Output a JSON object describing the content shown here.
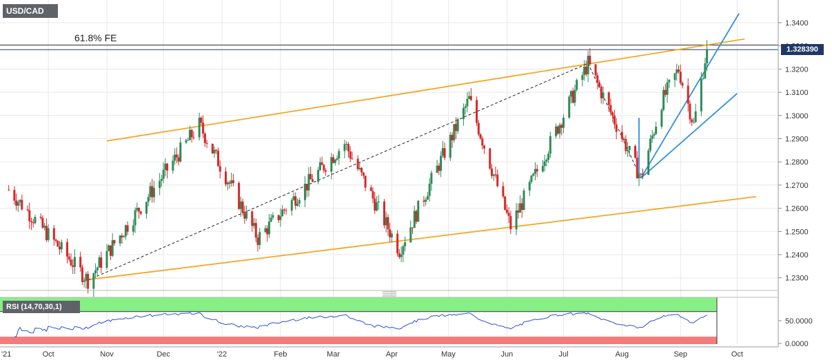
{
  "chart_data": {
    "type": "candlestick",
    "title": "USD/CAD",
    "current_price": "1.328390",
    "annotation": "61.8% FE",
    "x_tick_labels": [
      "'21",
      "Oct",
      "Nov",
      "Dec",
      "'22",
      "Feb",
      "Mar",
      "Apr",
      "May",
      "Jun",
      "Jul",
      "Aug",
      "Sep",
      "Oct"
    ],
    "y_tick_labels": [
      "1.3400",
      "1.3300",
      "1.3200",
      "1.3100",
      "1.3000",
      "1.2900",
      "1.2800",
      "1.2700",
      "1.2600",
      "1.2500",
      "1.2400",
      "1.2300"
    ],
    "ylim": [
      1.226,
      1.35
    ],
    "key_points": [
      {
        "date": "2021-09-10",
        "price": 1.268
      },
      {
        "date": "2021-10-22",
        "price": 1.229
      },
      {
        "date": "2021-12-20",
        "price": 1.296
      },
      {
        "date": "2022-01-20",
        "price": 1.247
      },
      {
        "date": "2022-03-07",
        "price": 1.288
      },
      {
        "date": "2022-04-05",
        "price": 1.242
      },
      {
        "date": "2022-05-12",
        "price": 1.307
      },
      {
        "date": "2022-06-03",
        "price": 1.252
      },
      {
        "date": "2022-07-14",
        "price": 1.3225
      },
      {
        "date": "2022-08-11",
        "price": 1.273
      },
      {
        "date": "2022-08-22",
        "price": 1.306
      },
      {
        "date": "2022-08-31",
        "price": 1.32
      },
      {
        "date": "2022-09-08",
        "price": 1.296
      },
      {
        "date": "2022-09-15",
        "price": 1.329
      }
    ],
    "rsi": {
      "label": "RSI (14,70,30,1)",
      "tick_labels": [
        "50.0000",
        "0.0000"
      ],
      "overbought": 70,
      "oversold": 30,
      "last": 65
    }
  },
  "colors": {
    "up": "#2e8b57",
    "down": "#d62728",
    "channel_orange": "#f5a623",
    "channel_blue": "#2f8fdd",
    "rsi_line": "#2b4fd8",
    "rsi_upper_zone": "#86ef86",
    "rsi_lower_zone": "#f47b7b",
    "price_tag": "#1f3864"
  }
}
